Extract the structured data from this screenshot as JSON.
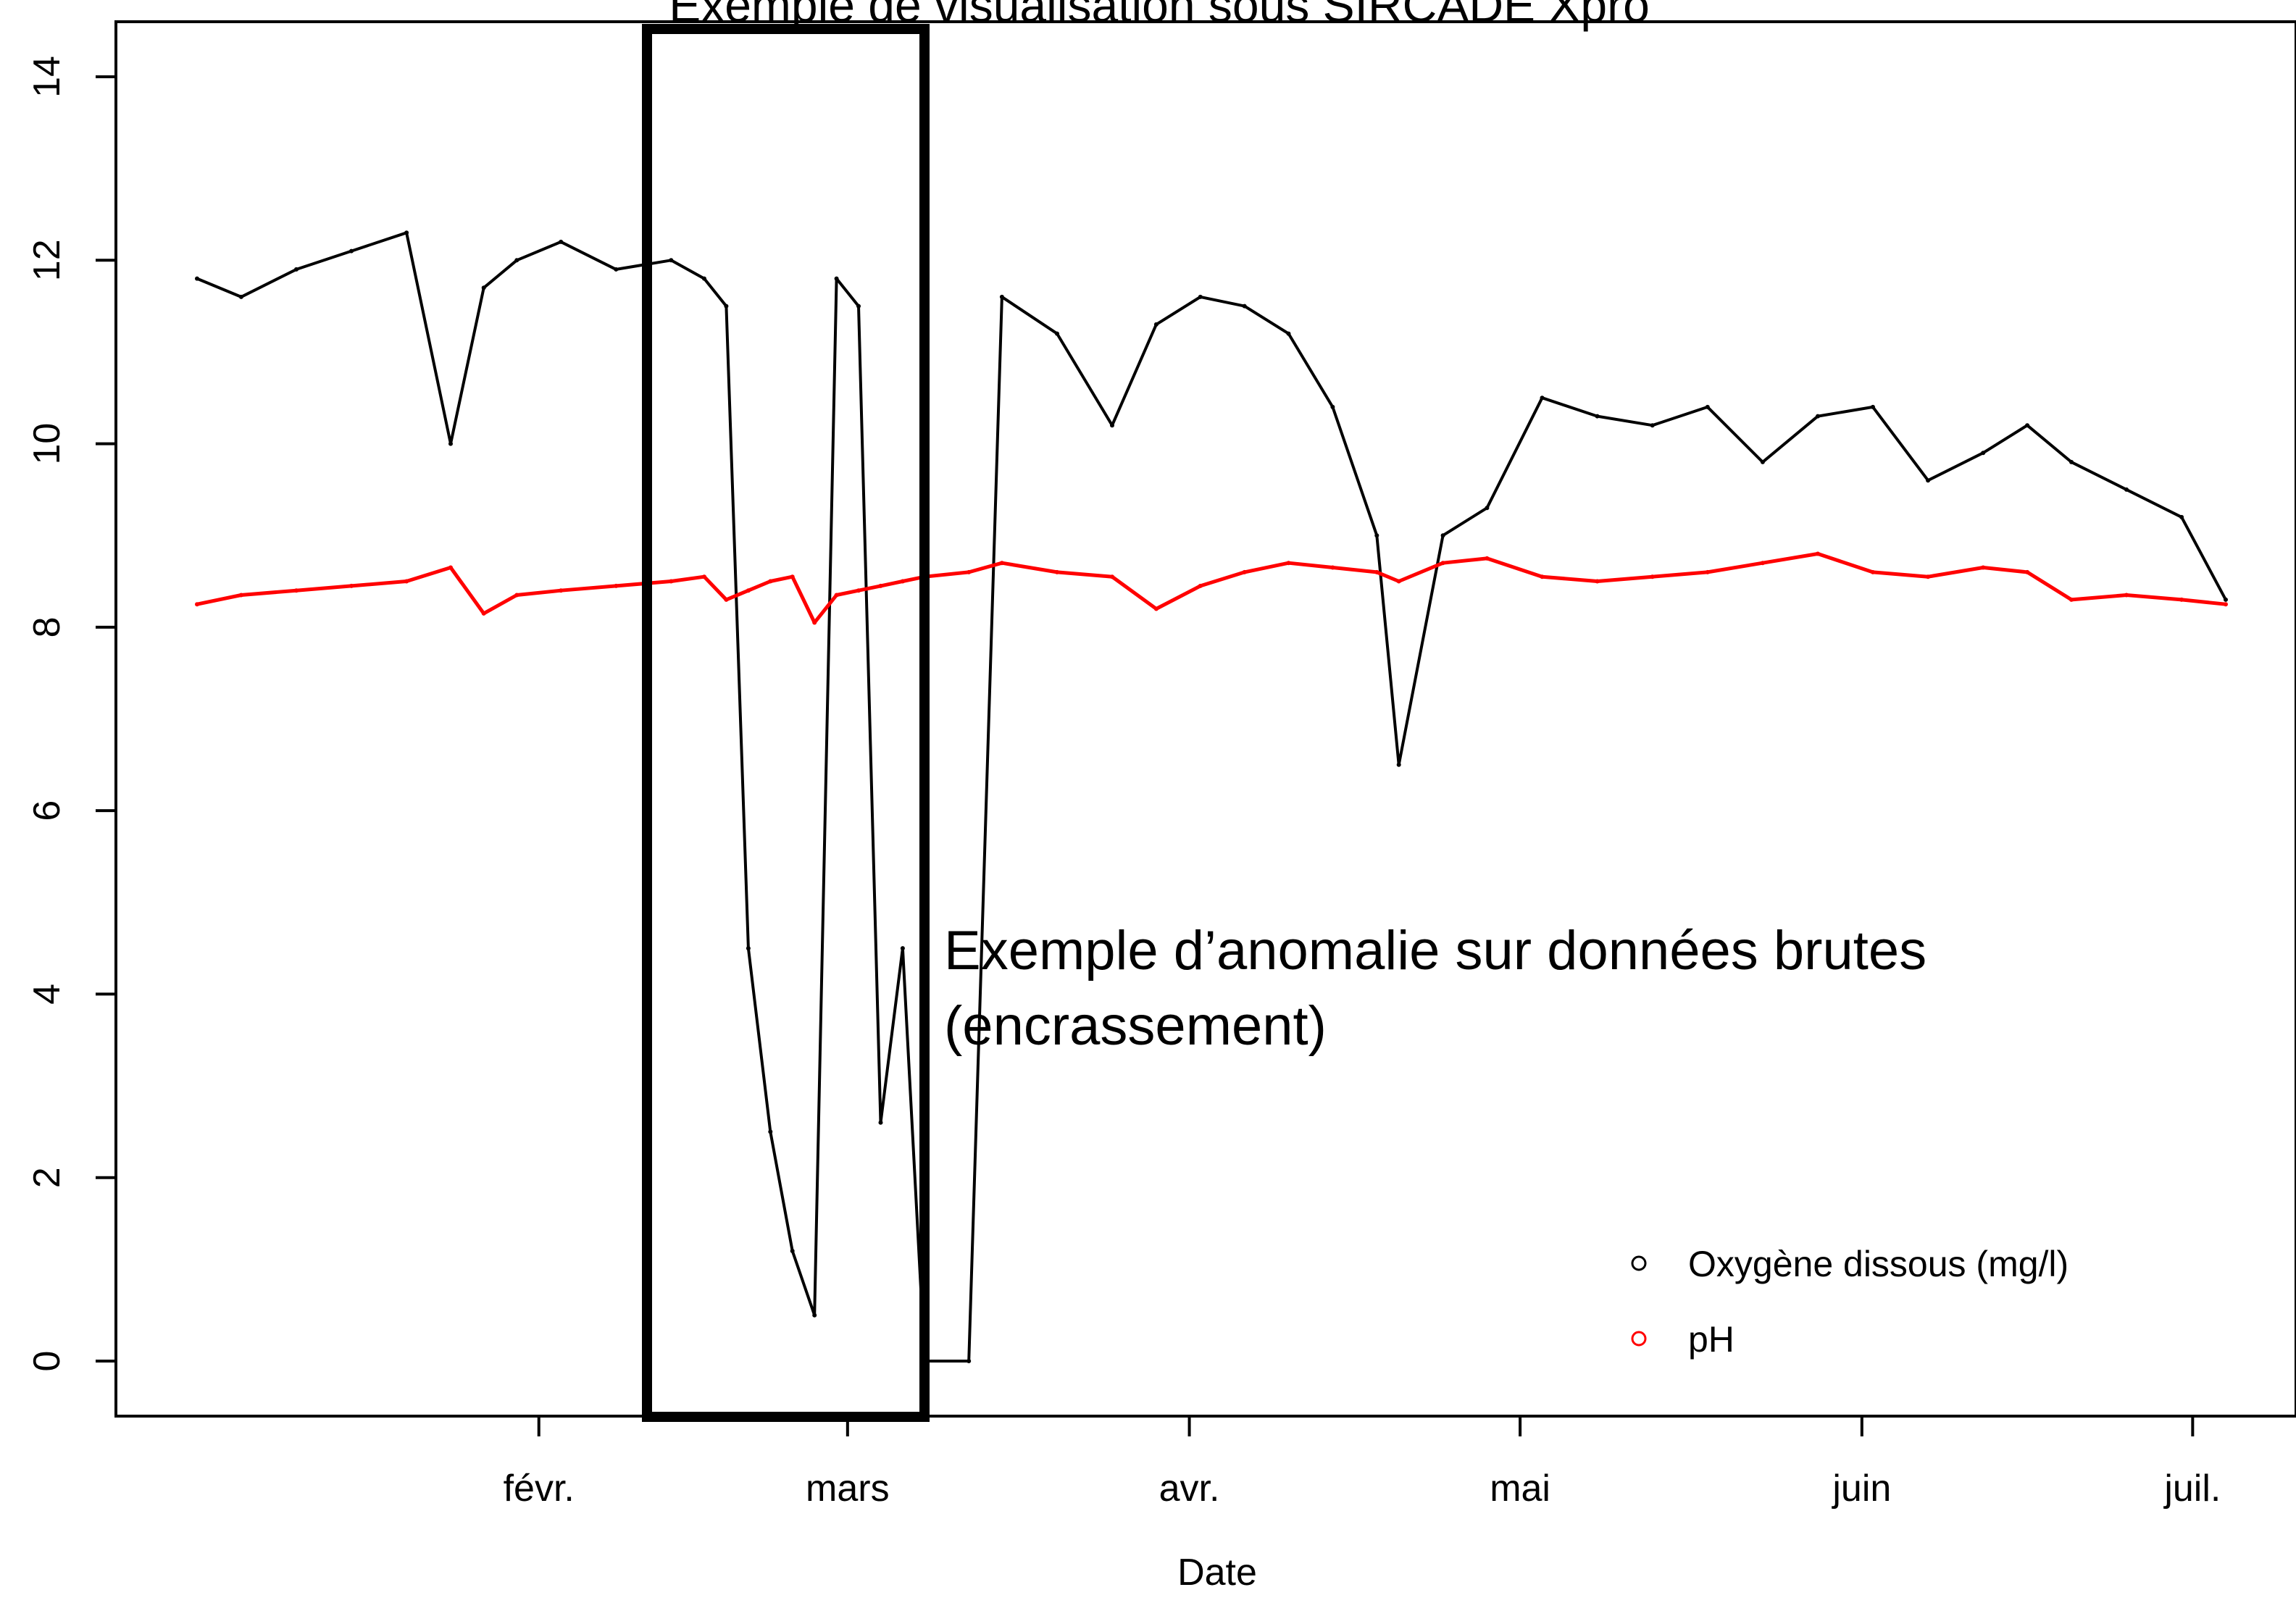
{
  "chart_data": {
    "type": "line",
    "title": "Exemple de visualisation sous SIRCADE Xpro",
    "xlabel": "Date",
    "ylabel": "",
    "x_ticks": [
      "févr.",
      "mars",
      "avr.",
      "mai",
      "juin",
      "juil."
    ],
    "x_range": [
      "2013-01-01",
      "2013-07-04"
    ],
    "ylim": [
      -0.6,
      14.6
    ],
    "y_ticks": [
      "0",
      "2",
      "4",
      "6",
      "8",
      "10",
      "12",
      "14"
    ],
    "grid": false,
    "legend_position": "bottom-right",
    "legend": [
      {
        "label": "Oxygène dissous (mg/l)",
        "color": "#000000",
        "marker": "open-circle"
      },
      {
        "label": "pH",
        "color": "#ff0000",
        "marker": "open-circle"
      }
    ],
    "annotation": {
      "lines": [
        "Exemple d’anomalie sur données brutes",
        "(encrassement)"
      ],
      "highlight_range": [
        "2013-02-15",
        "2013-03-13"
      ]
    },
    "series": [
      {
        "name": "Oxygène dissous (mg/l)",
        "color": "#000000",
        "x": [
          "2013-01-01",
          "2013-01-05",
          "2013-01-10",
          "2013-01-15",
          "2013-01-20",
          "2013-01-24",
          "2013-01-27",
          "2013-01-30",
          "2013-02-03",
          "2013-02-08",
          "2013-02-13",
          "2013-02-16",
          "2013-02-18",
          "2013-02-20",
          "2013-02-22",
          "2013-02-24",
          "2013-02-26",
          "2013-02-28",
          "2013-03-02",
          "2013-03-04",
          "2013-03-06",
          "2013-03-08",
          "2013-03-12",
          "2013-03-15",
          "2013-03-20",
          "2013-03-25",
          "2013-03-29",
          "2013-04-02",
          "2013-04-06",
          "2013-04-10",
          "2013-04-14",
          "2013-04-18",
          "2013-04-20",
          "2013-04-24",
          "2013-04-28",
          "2013-05-03",
          "2013-05-08",
          "2013-05-13",
          "2013-05-18",
          "2013-05-23",
          "2013-05-28",
          "2013-06-02",
          "2013-06-07",
          "2013-06-12",
          "2013-06-16",
          "2013-06-20",
          "2013-06-25",
          "2013-06-30",
          "2013-07-04"
        ],
        "values": [
          11.8,
          11.6,
          11.9,
          12.1,
          12.3,
          10.0,
          11.7,
          12.0,
          12.2,
          11.9,
          12.0,
          11.8,
          11.5,
          4.5,
          2.5,
          1.2,
          0.5,
          11.8,
          11.5,
          2.6,
          4.5,
          0.0,
          0.0,
          11.6,
          11.2,
          10.2,
          11.3,
          11.6,
          11.5,
          11.2,
          10.4,
          9.0,
          6.5,
          9.0,
          9.3,
          10.5,
          10.3,
          10.2,
          10.4,
          9.8,
          10.3,
          10.4,
          9.6,
          9.9,
          10.2,
          9.8,
          9.5,
          9.2,
          8.3
        ]
      },
      {
        "name": "pH",
        "color": "#ff0000",
        "x": [
          "2013-01-01",
          "2013-01-05",
          "2013-01-10",
          "2013-01-15",
          "2013-01-20",
          "2013-01-24",
          "2013-01-27",
          "2013-01-30",
          "2013-02-03",
          "2013-02-08",
          "2013-02-13",
          "2013-02-16",
          "2013-02-18",
          "2013-02-20",
          "2013-02-22",
          "2013-02-24",
          "2013-02-26",
          "2013-02-28",
          "2013-03-02",
          "2013-03-04",
          "2013-03-06",
          "2013-03-08",
          "2013-03-12",
          "2013-03-15",
          "2013-03-20",
          "2013-03-25",
          "2013-03-29",
          "2013-04-02",
          "2013-04-06",
          "2013-04-10",
          "2013-04-14",
          "2013-04-18",
          "2013-04-20",
          "2013-04-24",
          "2013-04-28",
          "2013-05-03",
          "2013-05-08",
          "2013-05-13",
          "2013-05-18",
          "2013-05-23",
          "2013-05-28",
          "2013-06-02",
          "2013-06-07",
          "2013-06-12",
          "2013-06-16",
          "2013-06-20",
          "2013-06-25",
          "2013-06-30",
          "2013-07-04"
        ],
        "values": [
          8.25,
          8.35,
          8.4,
          8.45,
          8.5,
          8.65,
          8.15,
          8.35,
          8.4,
          8.45,
          8.5,
          8.55,
          8.3,
          8.4,
          8.5,
          8.55,
          8.05,
          8.35,
          8.4,
          8.45,
          8.5,
          8.55,
          8.6,
          8.7,
          8.6,
          8.55,
          8.2,
          8.45,
          8.6,
          8.7,
          8.65,
          8.6,
          8.5,
          8.7,
          8.75,
          8.55,
          8.5,
          8.55,
          8.6,
          8.7,
          8.8,
          8.6,
          8.55,
          8.65,
          8.6,
          8.3,
          8.35,
          8.3,
          8.25
        ]
      }
    ]
  }
}
